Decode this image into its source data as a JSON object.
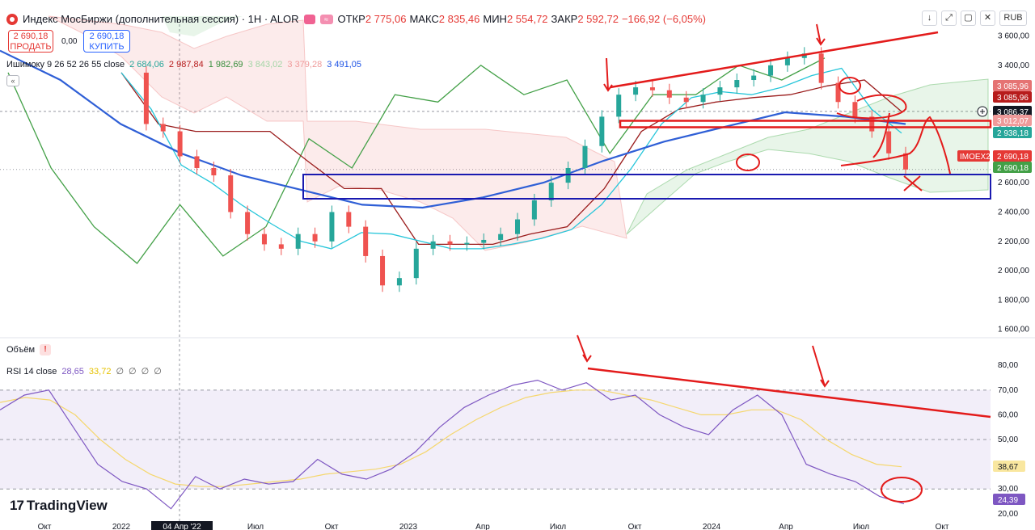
{
  "header": {
    "title": "Индекс МосБиржи (дополнительная сессия) · 1H · ALOR",
    "ohlc": [
      {
        "label": "ОТКР",
        "value": "2 775,06"
      },
      {
        "label": "МАКС",
        "value": "2 835,46"
      },
      {
        "label": "МИН",
        "value": "2 554,72"
      },
      {
        "label": "ЗАКР",
        "value": "2 592,72"
      },
      {
        "label": "",
        "value": "−166,92 (−6,05%)"
      }
    ],
    "flag_chip_label": "≈",
    "sell_price": "2 690,18",
    "sell_label": "ПРОДАТЬ",
    "spread": "0,00",
    "buy_price": "2 690,18",
    "buy_label": "КУПИТЬ"
  },
  "ichimoku": {
    "label": "Ишимоку 9 26 52 26 55 close",
    "values": [
      "2 684,06",
      "2 987,84",
      "1 982,69",
      "3 843,02",
      "3 379,28",
      "3 491,05"
    ],
    "collapse_icon": "«"
  },
  "volume": {
    "label": "Объём",
    "warning": "!"
  },
  "rsi": {
    "label": "RSI 14 close",
    "value": "28,65",
    "ma_value": "33,72",
    "zeros": [
      "∅",
      "∅",
      "∅",
      "∅"
    ]
  },
  "toolbar": {
    "down_icon": "↓",
    "expand_icon": "⤢",
    "restore_icon": "▢",
    "close_icon": "✕",
    "currency": "RUB"
  },
  "price_axis": {
    "ticks": [
      "3 600,00",
      "3 400,00",
      "3 200,00",
      "3 000,00",
      "2 800,00",
      "2 600,00",
      "2 400,00",
      "2 200,00",
      "2 000,00",
      "1 800,00",
      "1 600,00"
    ],
    "badges": [
      {
        "text": "3 085,96",
        "color": "#e57373"
      },
      {
        "text": "3 085,96",
        "color": "#b71c1c"
      },
      {
        "text": "3 086,37",
        "color": "#131722"
      },
      {
        "text": "3 012,07",
        "color": "#ef9a9a"
      },
      {
        "text": "2 938,18",
        "color": "#26a69a"
      },
      {
        "text": "2 690,18",
        "color": "#e53935"
      },
      {
        "text": "2 690,18",
        "color": "#43a047"
      }
    ],
    "series_tag": "IMOEX2"
  },
  "rsi_axis": {
    "ticks": [
      "80,00",
      "70,00",
      "60,00",
      "50,00",
      "40,00",
      "30,00",
      "20,00"
    ],
    "badges": [
      {
        "text": "38,67",
        "color": "#f9e79f",
        "text_color": "#131722"
      },
      {
        "text": "24,39",
        "color": "#7e57c2",
        "text_color": "#ffffff"
      }
    ]
  },
  "time_axis": {
    "labels": [
      "Окт",
      "2022",
      "Июл",
      "Окт",
      "2023",
      "Апр",
      "Июл",
      "Окт",
      "2024",
      "Апр",
      "Июл",
      "Окт"
    ],
    "highlight": "04 Апр '22"
  },
  "branding": {
    "logo_mark": "17",
    "logo_text": "TradingView"
  },
  "chart_data": [
    {
      "type": "candlestick",
      "title": "Индекс МосБиржи (дополнительная сессия) · 1H · ALOR",
      "ylim": [
        1560,
        3680
      ],
      "ylabel": "",
      "x": [
        "Окт",
        "2022",
        "Июл",
        "Окт",
        "2023",
        "Апр",
        "Июл",
        "Окт",
        "2024",
        "Апр",
        "Июл",
        "Окт"
      ],
      "close_series": [
        3350,
        3000,
        2950,
        2780,
        2700,
        2650,
        2400,
        2250,
        2180,
        2150,
        2250,
        2200,
        2400,
        2300,
        2100,
        1900,
        1950,
        2150,
        2200,
        2180,
        2190,
        2210,
        2250,
        2350,
        2480,
        2600,
        2700,
        2850,
        3050,
        3200,
        3250,
        3230,
        3180,
        3150,
        3200,
        3250,
        3300,
        3330,
        3400,
        3450,
        3480,
        3280,
        3150,
        3050,
        2950,
        2800,
        2690
      ],
      "ichimoku_lines": {
        "conversion": [
          3350,
          3100,
          2720,
          2600,
          2450,
          2320,
          2200,
          2150,
          2260,
          2250,
          2200,
          2150,
          2150,
          2180,
          2220,
          2280,
          2450,
          2700,
          3000,
          3180,
          3220,
          3200,
          3250,
          3330,
          3380,
          3100,
          2938
        ],
        "base": [
          3350,
          3000,
          2950,
          2950,
          2950,
          2750,
          2560,
          2560,
          2180,
          2180,
          2180,
          2250,
          2300,
          2560,
          2950,
          3100,
          3150,
          3180,
          3200,
          3260,
          3300,
          3085
        ],
        "lagging_span": [
          3350,
          2700,
          2300,
          2050,
          2450,
          2100,
          2300,
          2900,
          2700,
          3200,
          3150,
          3400,
          3200,
          3300,
          2800,
          3200,
          3200,
          3400,
          3300,
          3450
        ],
        "ma": [
          3500,
          3300,
          3000,
          2800,
          2650,
          2550,
          2450,
          2430,
          2500,
          2600,
          2750,
          2880,
          2980,
          3080,
          3050,
          3000
        ]
      }
    },
    {
      "type": "line",
      "title": "RSI 14 close",
      "ylim": [
        17,
        84
      ],
      "series": [
        {
          "name": "RSI",
          "values": [
            62,
            68,
            70,
            55,
            40,
            33,
            30,
            22,
            35,
            30,
            34,
            32,
            33,
            42,
            36,
            34,
            38,
            45,
            55,
            63,
            68,
            72,
            74,
            70,
            73,
            66,
            68,
            60,
            55,
            52,
            62,
            68,
            60,
            40,
            36,
            33,
            27,
            24
          ]
        },
        {
          "name": "RSI MA",
          "values": [
            65,
            67,
            66,
            60,
            50,
            42,
            36,
            32,
            31,
            31,
            32,
            33,
            34,
            36,
            37,
            38,
            40,
            45,
            52,
            58,
            63,
            67,
            69,
            70,
            70,
            68,
            66,
            63,
            60,
            60,
            62,
            62,
            58,
            50,
            44,
            40,
            39
          ]
        }
      ]
    }
  ]
}
